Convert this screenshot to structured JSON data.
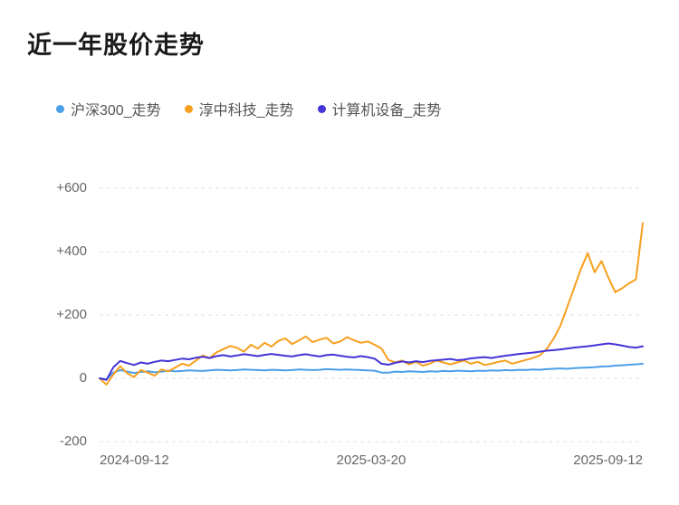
{
  "title": "近一年股价走势",
  "chart_data": {
    "type": "line",
    "title": "近一年股价走势",
    "x_tick_labels": [
      "2024-09-12",
      "2025-03-20",
      "2025-09-12"
    ],
    "y_tick_labels": [
      "+600",
      "+400",
      "+200",
      "0",
      "-200"
    ],
    "y_ticks": [
      600,
      400,
      200,
      0,
      -200
    ],
    "ylim": [
      -200,
      600
    ],
    "grid": "dashed-horizontal",
    "legend_position": "top-left",
    "series": [
      {
        "name": "沪深300_走势",
        "color": "#4b9fe8",
        "values": [
          0,
          -3,
          18,
          26,
          21,
          17,
          20,
          22,
          19,
          21,
          24,
          22,
          23,
          25,
          24,
          23,
          25,
          27,
          26,
          25,
          26,
          28,
          27,
          26,
          25,
          27,
          26,
          25,
          26,
          28,
          27,
          26,
          27,
          29,
          28,
          27,
          28,
          27,
          26,
          25,
          24,
          18,
          18,
          21,
          20,
          22,
          21,
          20,
          22,
          21,
          23,
          22,
          24,
          23,
          22,
          24,
          23,
          25,
          24,
          26,
          25,
          27,
          26,
          28,
          27,
          29,
          30,
          31,
          30,
          32,
          33,
          34,
          35,
          37,
          38,
          40,
          41,
          43,
          44,
          46
        ]
      },
      {
        "name": "淳中科技_走势",
        "color": "#f7a01e",
        "values": [
          0,
          -20,
          12,
          38,
          16,
          4,
          26,
          18,
          8,
          28,
          22,
          34,
          46,
          40,
          56,
          72,
          64,
          82,
          92,
          102,
          96,
          84,
          106,
          94,
          112,
          100,
          118,
          126,
          108,
          120,
          132,
          114,
          122,
          128,
          110,
          116,
          130,
          120,
          112,
          116,
          106,
          94,
          58,
          50,
          56,
          44,
          52,
          40,
          46,
          56,
          50,
          44,
          50,
          56,
          46,
          52,
          42,
          46,
          52,
          56,
          46,
          52,
          58,
          64,
          72,
          92,
          124,
          165,
          225,
          285,
          345,
          395,
          335,
          370,
          318,
          272,
          284,
          300,
          312,
          490
        ]
      },
      {
        "name": "计算机设备_走势",
        "color": "#4433d6",
        "values": [
          0,
          -5,
          35,
          55,
          48,
          42,
          50,
          46,
          52,
          56,
          54,
          58,
          62,
          60,
          65,
          68,
          64,
          70,
          73,
          69,
          72,
          76,
          73,
          70,
          74,
          77,
          74,
          71,
          69,
          73,
          76,
          72,
          69,
          73,
          75,
          71,
          68,
          66,
          70,
          67,
          62,
          46,
          43,
          49,
          53,
          50,
          54,
          51,
          55,
          57,
          59,
          61,
          57,
          59,
          63,
          65,
          67,
          64,
          68,
          71,
          74,
          77,
          79,
          81,
          84,
          87,
          89,
          91,
          94,
          97,
          99,
          101,
          104,
          107,
          110,
          107,
          103,
          99,
          97,
          101
        ]
      }
    ]
  }
}
